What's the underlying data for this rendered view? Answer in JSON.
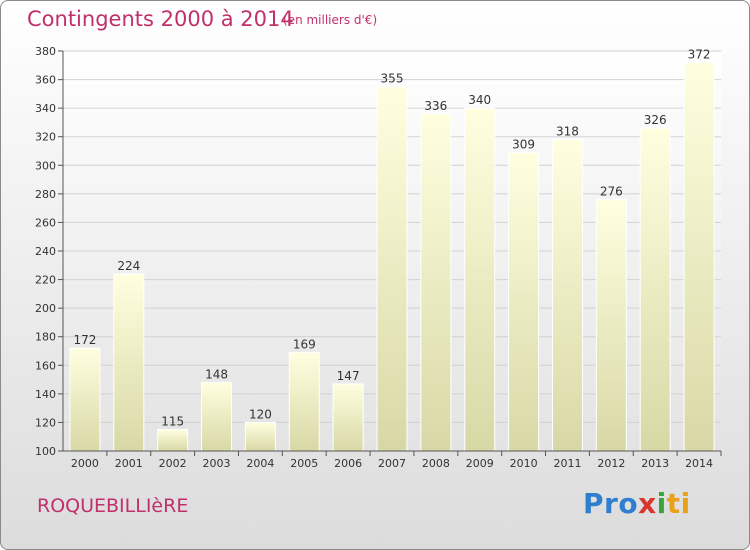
{
  "header": {
    "title": "Contingents 2000 à 2014",
    "unit": "(en milliers d'€)"
  },
  "footer": {
    "commune": "ROQUEBILLIèRE",
    "logo": [
      "Pro",
      "x",
      "i",
      "ti"
    ]
  },
  "colors": {
    "accent": "#c0306a",
    "bar_top": "#ffffe0",
    "bar_bottom": "#d8d8a6"
  },
  "chart_data": {
    "type": "bar",
    "title": "Contingents 2000 à 2014",
    "subtitle": "(en milliers d'€)",
    "xlabel": "",
    "ylabel": "",
    "categories": [
      "2000",
      "2001",
      "2002",
      "2003",
      "2004",
      "2005",
      "2006",
      "2007",
      "2008",
      "2009",
      "2010",
      "2011",
      "2012",
      "2013",
      "2014"
    ],
    "values": [
      172,
      224,
      115,
      148,
      120,
      169,
      147,
      355,
      336,
      340,
      309,
      318,
      276,
      326,
      372
    ],
    "ylim": [
      100,
      380
    ],
    "yticks": [
      100,
      120,
      140,
      160,
      180,
      200,
      220,
      240,
      260,
      280,
      300,
      320,
      340,
      360,
      380
    ],
    "grid": "horizontal"
  }
}
